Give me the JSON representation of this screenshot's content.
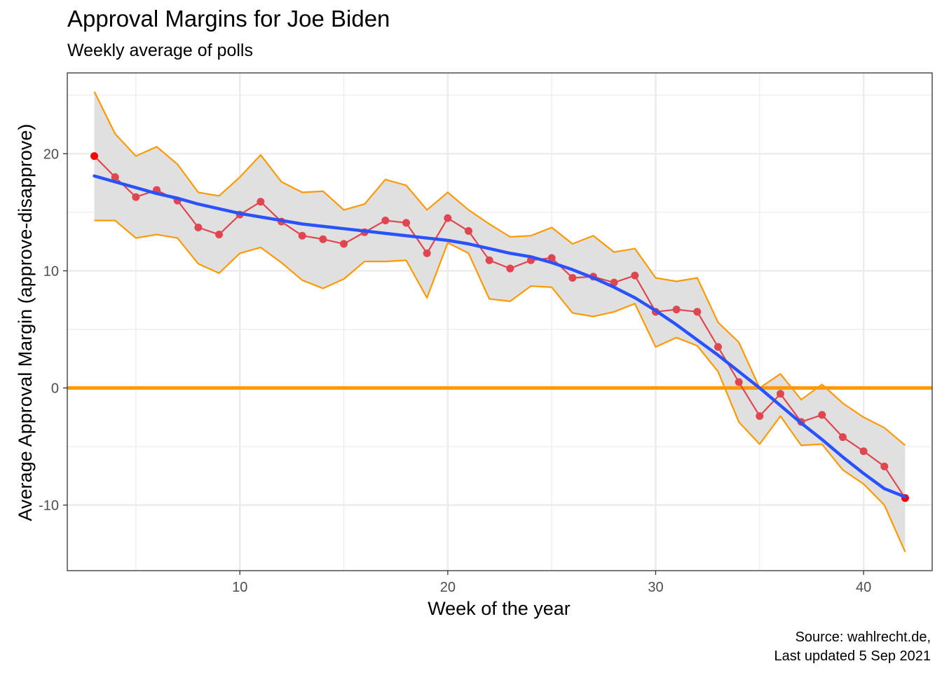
{
  "title": "Approval Margins for Joe Biden",
  "subtitle": "Weekly average of polls",
  "caption": {
    "line1": "Source: wahlrecht.de,",
    "line2": "Last updated 5 Sep 2021"
  },
  "colors": {
    "margin_line": "#e04650",
    "margin_points": "#e04650",
    "endpoint": "#ff0000",
    "trend": "#2a52ff",
    "band_line": "#ff9900",
    "band_fill": "#e0e0e0",
    "zero_line": "#ff9900",
    "grid": "#ebebeb"
  },
  "chart_data": {
    "type": "line",
    "xlabel": "Week of the year",
    "ylabel": "Average Approval Margin (approve-disapprove)",
    "xlim": [
      1.7,
      43.3
    ],
    "ylim": [
      -15.6,
      26.9
    ],
    "xticks": [
      10,
      20,
      30,
      40
    ],
    "yticks": [
      -10,
      0,
      10,
      20
    ],
    "x_minor": [
      5,
      15,
      25,
      35
    ],
    "y_minor": [
      -5,
      5,
      15,
      25
    ],
    "grid": true,
    "hline": 0,
    "x": [
      3,
      4,
      5,
      6,
      7,
      8,
      9,
      10,
      11,
      12,
      13,
      14,
      15,
      16,
      17,
      18,
      19,
      20,
      21,
      22,
      23,
      24,
      25,
      26,
      27,
      28,
      29,
      30,
      31,
      32,
      33,
      34,
      35,
      36,
      37,
      38,
      39,
      40,
      41,
      42
    ],
    "series": [
      {
        "role": "margin",
        "values": [
          19.8,
          18.0,
          16.3,
          16.9,
          16.0,
          13.7,
          13.1,
          14.8,
          15.9,
          14.2,
          13.0,
          12.7,
          12.3,
          13.3,
          14.3,
          14.1,
          11.5,
          14.5,
          13.4,
          10.9,
          10.2,
          10.9,
          11.1,
          9.4,
          9.5,
          9.0,
          9.6,
          6.5,
          6.7,
          6.5,
          3.5,
          0.5,
          -2.4,
          -0.5,
          -2.9,
          -2.3,
          -4.2,
          -5.4,
          -6.7,
          -9.4
        ]
      },
      {
        "role": "upper",
        "values": [
          25.3,
          21.7,
          19.8,
          20.6,
          19.1,
          16.7,
          16.4,
          18.0,
          19.9,
          17.6,
          16.7,
          16.8,
          15.2,
          15.7,
          17.8,
          17.3,
          15.2,
          16.7,
          15.2,
          14.0,
          12.9,
          13.0,
          13.7,
          12.3,
          13.0,
          11.6,
          11.9,
          9.4,
          9.1,
          9.4,
          5.6,
          3.9,
          0.0,
          1.2,
          -1.0,
          0.3,
          -1.3,
          -2.5,
          -3.4,
          -4.9
        ]
      },
      {
        "role": "lower",
        "values": [
          14.3,
          14.3,
          12.8,
          13.1,
          12.8,
          10.6,
          9.8,
          11.5,
          12.0,
          10.7,
          9.2,
          8.5,
          9.3,
          10.8,
          10.8,
          10.9,
          7.7,
          12.4,
          11.5,
          7.6,
          7.4,
          8.7,
          8.6,
          6.4,
          6.1,
          6.5,
          7.2,
          3.5,
          4.3,
          3.6,
          1.4,
          -2.9,
          -4.8,
          -2.4,
          -4.9,
          -4.8,
          -7.0,
          -8.2,
          -10.0,
          -14.0
        ]
      },
      {
        "role": "trend",
        "values": [
          18.1,
          17.6,
          17.1,
          16.6,
          16.2,
          15.7,
          15.3,
          14.9,
          14.6,
          14.3,
          14.0,
          13.8,
          13.6,
          13.4,
          13.2,
          13.0,
          12.8,
          12.6,
          12.3,
          11.9,
          11.5,
          11.2,
          10.7,
          10.1,
          9.4,
          8.6,
          7.7,
          6.6,
          5.4,
          4.1,
          2.8,
          1.4,
          0.0,
          -1.5,
          -3.0,
          -4.4,
          -5.9,
          -7.3,
          -8.6,
          -9.3
        ]
      }
    ]
  }
}
